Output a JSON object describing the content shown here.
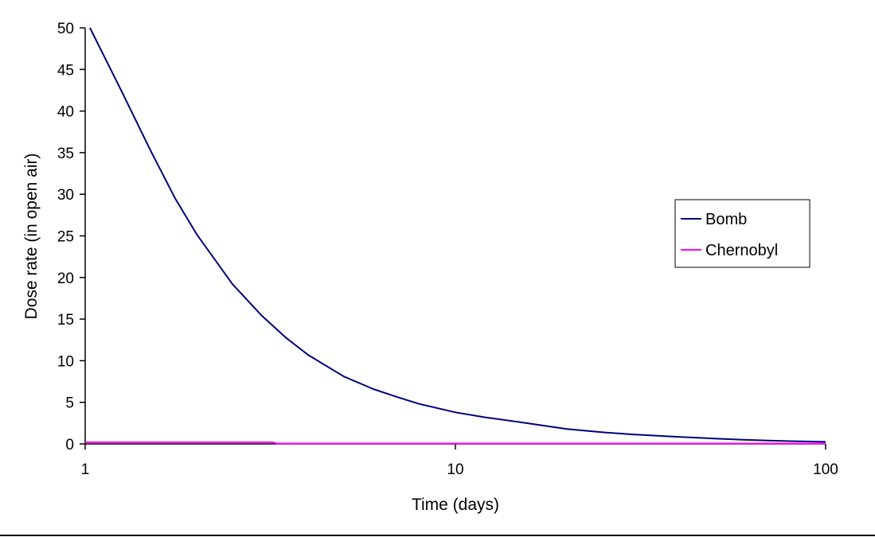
{
  "chart_data": {
    "type": "line",
    "title": "",
    "xlabel": "Time (days)",
    "ylabel": "Dose rate (in open air)",
    "x_scale": "log",
    "xlim": [
      1,
      100
    ],
    "ylim": [
      0,
      50
    ],
    "x_ticks": [
      1,
      10,
      100
    ],
    "x_tick_labels": [
      "1",
      "10",
      "100"
    ],
    "y_ticks": [
      0,
      5,
      10,
      15,
      20,
      25,
      30,
      35,
      40,
      45,
      50
    ],
    "y_tick_labels": [
      "0",
      "5",
      "10",
      "15",
      "20",
      "25",
      "30",
      "35",
      "40",
      "45",
      "50"
    ],
    "grid": false,
    "legend_position": "right",
    "series": [
      {
        "name": "Bomb",
        "color": "#000080",
        "x": [
          1.03,
          1.25,
          1.5,
          1.75,
          2,
          2.5,
          3,
          3.5,
          4,
          5,
          6,
          7,
          8,
          10,
          12,
          15,
          20,
          25,
          30,
          40,
          50,
          60,
          70,
          80,
          100
        ],
        "y": [
          50,
          42.5,
          35.3,
          29.5,
          25.2,
          19.2,
          15.4,
          12.7,
          10.7,
          8.1,
          6.6,
          5.6,
          4.8,
          3.8,
          3.2,
          2.6,
          1.8,
          1.4,
          1.15,
          0.85,
          0.65,
          0.5,
          0.4,
          0.33,
          0.25
        ]
      },
      {
        "name": "Chernobyl",
        "color": "#FF00FF",
        "x": [
          1,
          3.2,
          3.3,
          100
        ],
        "y": [
          0.2,
          0.2,
          0.05,
          0.05
        ]
      }
    ]
  }
}
